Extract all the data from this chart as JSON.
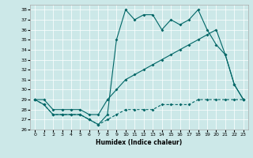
{
  "xlabel": "Humidex (Indice chaleur)",
  "xlim": [
    -0.5,
    23.5
  ],
  "ylim": [
    26,
    38.5
  ],
  "yticks": [
    26,
    27,
    28,
    29,
    30,
    31,
    32,
    33,
    34,
    35,
    36,
    37,
    38
  ],
  "xticks": [
    0,
    1,
    2,
    3,
    4,
    5,
    6,
    7,
    8,
    9,
    10,
    11,
    12,
    13,
    14,
    15,
    16,
    17,
    18,
    19,
    20,
    21,
    22,
    23
  ],
  "bg_color": "#cce8e8",
  "line_color": "#006666",
  "series": {
    "line1_dashed": {
      "x": [
        0,
        1,
        2,
        3,
        4,
        5,
        6,
        7,
        8,
        9,
        10,
        11,
        12,
        13,
        14,
        15,
        16,
        17,
        18,
        19,
        20,
        21,
        22,
        23
      ],
      "y": [
        29,
        28.5,
        27.5,
        27.5,
        27.5,
        27.5,
        27,
        26.5,
        27,
        27.5,
        28,
        28,
        28,
        28,
        28.5,
        28.5,
        28.5,
        28.5,
        29,
        29,
        29,
        29,
        29,
        29
      ]
    },
    "line2_solid": {
      "x": [
        0,
        1,
        2,
        3,
        4,
        5,
        6,
        7,
        8,
        9,
        10,
        11,
        12,
        13,
        14,
        15,
        16,
        17,
        18,
        19,
        20,
        21,
        22,
        23
      ],
      "y": [
        29,
        29,
        28,
        28,
        28,
        28,
        27.5,
        27.5,
        29,
        30,
        31,
        31.5,
        32,
        32.5,
        33,
        33.5,
        34,
        34.5,
        35,
        35.5,
        36,
        33.5,
        30.5,
        29
      ]
    },
    "line3_jagged": {
      "x": [
        0,
        1,
        2,
        3,
        4,
        5,
        6,
        7,
        8,
        9,
        10,
        11,
        12,
        13,
        14,
        15,
        16,
        17,
        18,
        19,
        20,
        21,
        22,
        23
      ],
      "y": [
        29,
        28.5,
        27.5,
        27.5,
        27.5,
        27.5,
        27,
        26.5,
        27.5,
        35,
        38,
        37,
        37.5,
        37.5,
        36,
        37,
        36.5,
        37,
        38,
        36,
        34.5,
        33.5,
        30.5,
        29
      ]
    }
  }
}
